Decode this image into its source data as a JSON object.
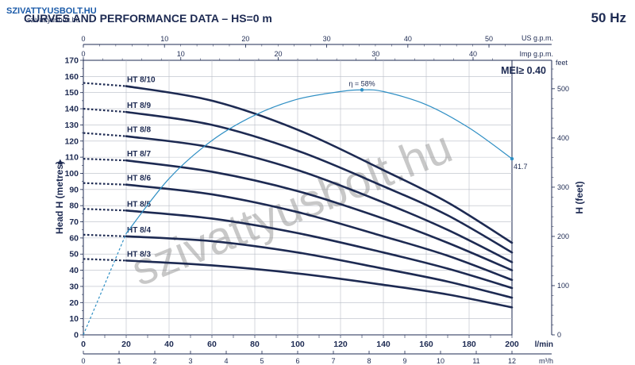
{
  "header": {
    "logo_text": "SZIVATTYUSBOLT.HU",
    "logo_url": "szivattyusbolt.hu",
    "title": "CURVES AND PERFORMANCE DATA  –  HS=0 m",
    "frequency": "50 Hz"
  },
  "watermark": "szivattyusbolt.hu",
  "colors": {
    "curve": "#1d2a52",
    "efficiency": "#2f8fc4",
    "grid": "#b8bcc6",
    "text": "#1d2a52"
  },
  "chart_data": {
    "type": "line",
    "title": "CURVES AND PERFORMANCE DATA  –  HS=0 m",
    "ylabel": "Head H (metres)",
    "ylabel_right": "H  (feet)",
    "x_unit": "l/min",
    "x_unit_m3": "m³/h",
    "x_unit_us": "US g.p.m.",
    "x_unit_imp": "Imp g.p.m.",
    "xlim": [
      0,
      200
    ],
    "ylim": [
      0,
      170
    ],
    "x_ticks": [
      0,
      20,
      40,
      60,
      80,
      100,
      120,
      140,
      160,
      180,
      200
    ],
    "y_ticks": [
      0,
      10,
      20,
      30,
      40,
      50,
      60,
      70,
      80,
      90,
      100,
      110,
      120,
      130,
      140,
      150,
      160,
      170
    ],
    "m3h_ticks": [
      0,
      1,
      2,
      3,
      4,
      5,
      6,
      7,
      8,
      9,
      10,
      11,
      12
    ],
    "us_gpm_ticks": [
      0,
      10,
      20,
      30,
      40,
      50
    ],
    "imp_gpm_ticks": [
      0,
      10,
      20,
      30,
      40
    ],
    "feet_ticks": [
      0,
      100,
      200,
      300,
      400,
      500
    ],
    "feet_label": "feet",
    "grid": true,
    "mei_label": "MEI≥ 0.40",
    "series": [
      {
        "name": "HT 8/10",
        "x": [
          0,
          20,
          60,
          100,
          140,
          170,
          200
        ],
        "values": [
          156,
          154,
          145,
          127,
          102,
          82,
          57
        ]
      },
      {
        "name": "HT 8/9",
        "x": [
          0,
          20,
          60,
          100,
          140,
          170,
          200
        ],
        "values": [
          140,
          138,
          130,
          114,
          92,
          74,
          51
        ]
      },
      {
        "name": "HT 8/8",
        "x": [
          0,
          20,
          60,
          100,
          140,
          170,
          200
        ],
        "values": [
          125,
          123,
          116,
          102,
          82,
          65,
          45
        ]
      },
      {
        "name": "HT 8/7",
        "x": [
          0,
          20,
          60,
          100,
          140,
          170,
          200
        ],
        "values": [
          109,
          108,
          101,
          89,
          72,
          57,
          40
        ]
      },
      {
        "name": "HT 8/6",
        "x": [
          0,
          20,
          60,
          100,
          140,
          170,
          200
        ],
        "values": [
          94,
          93,
          87,
          76,
          61,
          49,
          34
        ]
      },
      {
        "name": "HT 8/5",
        "x": [
          0,
          20,
          60,
          100,
          140,
          170,
          200
        ],
        "values": [
          78,
          77,
          72,
          63,
          51,
          41,
          29
        ]
      },
      {
        "name": "HT 8/4",
        "x": [
          0,
          20,
          60,
          100,
          140,
          170,
          200
        ],
        "values": [
          62,
          61,
          58,
          51,
          41,
          33,
          23
        ]
      },
      {
        "name": "HT 8/3",
        "x": [
          0,
          20,
          60,
          100,
          140,
          170,
          200
        ],
        "values": [
          47,
          46,
          43,
          38,
          31,
          25,
          17
        ]
      }
    ],
    "efficiency": {
      "name": "η",
      "x": [
        0,
        20,
        40,
        60,
        80,
        100,
        120,
        130,
        140,
        160,
        180,
        200
      ],
      "values": [
        0,
        24,
        37,
        46,
        52,
        55.8,
        57.6,
        58,
        57.6,
        54.5,
        49,
        41.7
      ],
      "max_label": "η = 58%",
      "max_x": 130,
      "max_value": 58,
      "end_label": "41.7",
      "end_x": 200,
      "end_value": 41.7,
      "scale_ylim": [
        0,
        65
      ]
    }
  }
}
